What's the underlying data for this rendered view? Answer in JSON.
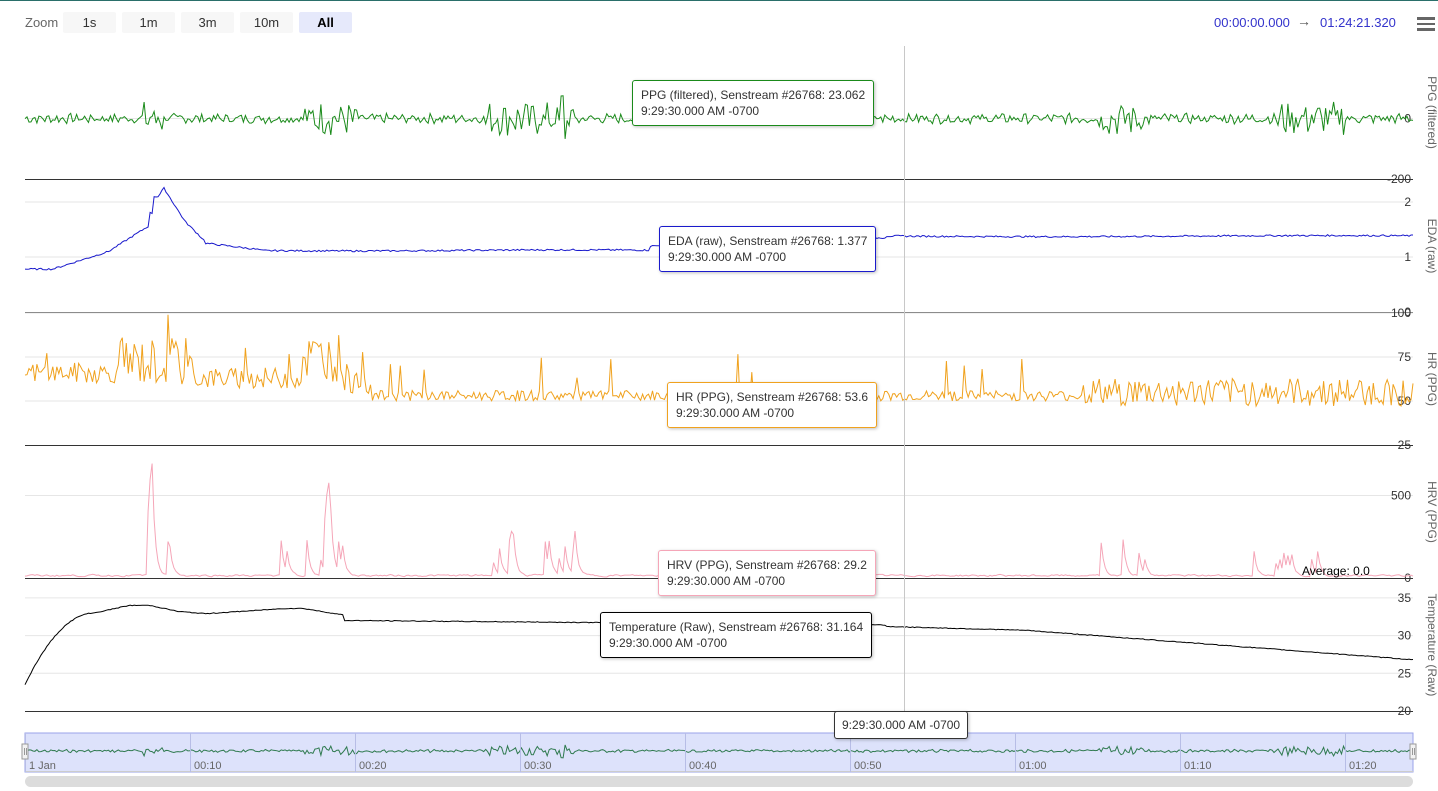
{
  "toolbar": {
    "zoom_label": "Zoom",
    "buttons": [
      "1s",
      "1m",
      "3m",
      "10m",
      "All"
    ],
    "active": "All",
    "range_start": "00:00:00.000",
    "range_arrow": "→",
    "range_end": "01:24:21.320",
    "menu_icon": "hamburger-menu-icon"
  },
  "chart_data": [
    {
      "type": "line",
      "ylabel": "PPG (filtered)",
      "color": "#1a8a1a",
      "yticks": [
        "0",
        "-200"
      ],
      "tick_values": [
        0,
        -200
      ],
      "ylim": [
        -200,
        240
      ],
      "series": [
        {
          "name": "PPG (filtered), Senstream #26768"
        }
      ],
      "tooltip": {
        "label": "PPG (filtered), Senstream #26768: 23.062",
        "time": "9:29:30.000 AM -0700"
      }
    },
    {
      "type": "line",
      "ylabel": "EDA (raw)",
      "color": "#1a1acc",
      "yticks": [
        "2",
        "1",
        "0"
      ],
      "tick_values": [
        2,
        1,
        0
      ],
      "ylim": [
        0,
        2.4
      ],
      "series": [
        {
          "name": "EDA (raw), Senstream #26768"
        }
      ],
      "tooltip": {
        "label": "EDA (raw), Senstream #26768: 1.377",
        "time": "9:29:30.000 AM -0700"
      }
    },
    {
      "type": "line",
      "ylabel": "HR (PPG)",
      "color": "#f0a21e",
      "yticks": [
        "100",
        "75",
        "50",
        "25"
      ],
      "tick_values": [
        100,
        75,
        50,
        25
      ],
      "ylim": [
        25,
        100
      ],
      "series": [
        {
          "name": "HR (PPG), Senstream #26768"
        }
      ],
      "tooltip": {
        "label": "HR (PPG), Senstream #26768: 53.6",
        "time": "9:29:30.000 AM -0700"
      }
    },
    {
      "type": "line",
      "ylabel": "HRV (PPG)",
      "color": "#f5a6b8",
      "yticks": [
        "500",
        "0"
      ],
      "tick_values": [
        500,
        0
      ],
      "ylim": [
        0,
        800
      ],
      "series": [
        {
          "name": "HRV (PPG), Senstream #26768"
        }
      ],
      "tooltip": {
        "label": "HRV (PPG), Senstream #26768: 29.2",
        "time": "9:29:30.000 AM -0700"
      },
      "annotation": "Average: 0.0"
    },
    {
      "type": "line",
      "ylabel": "Temperature (Raw)",
      "color": "#000000",
      "yticks": [
        "35",
        "30",
        "25",
        "20"
      ],
      "tick_values": [
        35,
        30,
        25,
        20
      ],
      "ylim": [
        20,
        37.5
      ],
      "series": [
        {
          "name": "Temperature (Raw), Senstream #26768"
        }
      ],
      "tooltip": {
        "label": "Temperature (Raw), Senstream #26768: 31.164",
        "time": "9:29:30.000 AM -0700"
      }
    }
  ],
  "crosshair_time": "9:29:30.000 AM -0700",
  "navigator": {
    "labels": [
      "1 Jan",
      "00:10",
      "00:20",
      "00:30",
      "00:40",
      "00:50",
      "01:00",
      "01:10",
      "01:20"
    ]
  }
}
